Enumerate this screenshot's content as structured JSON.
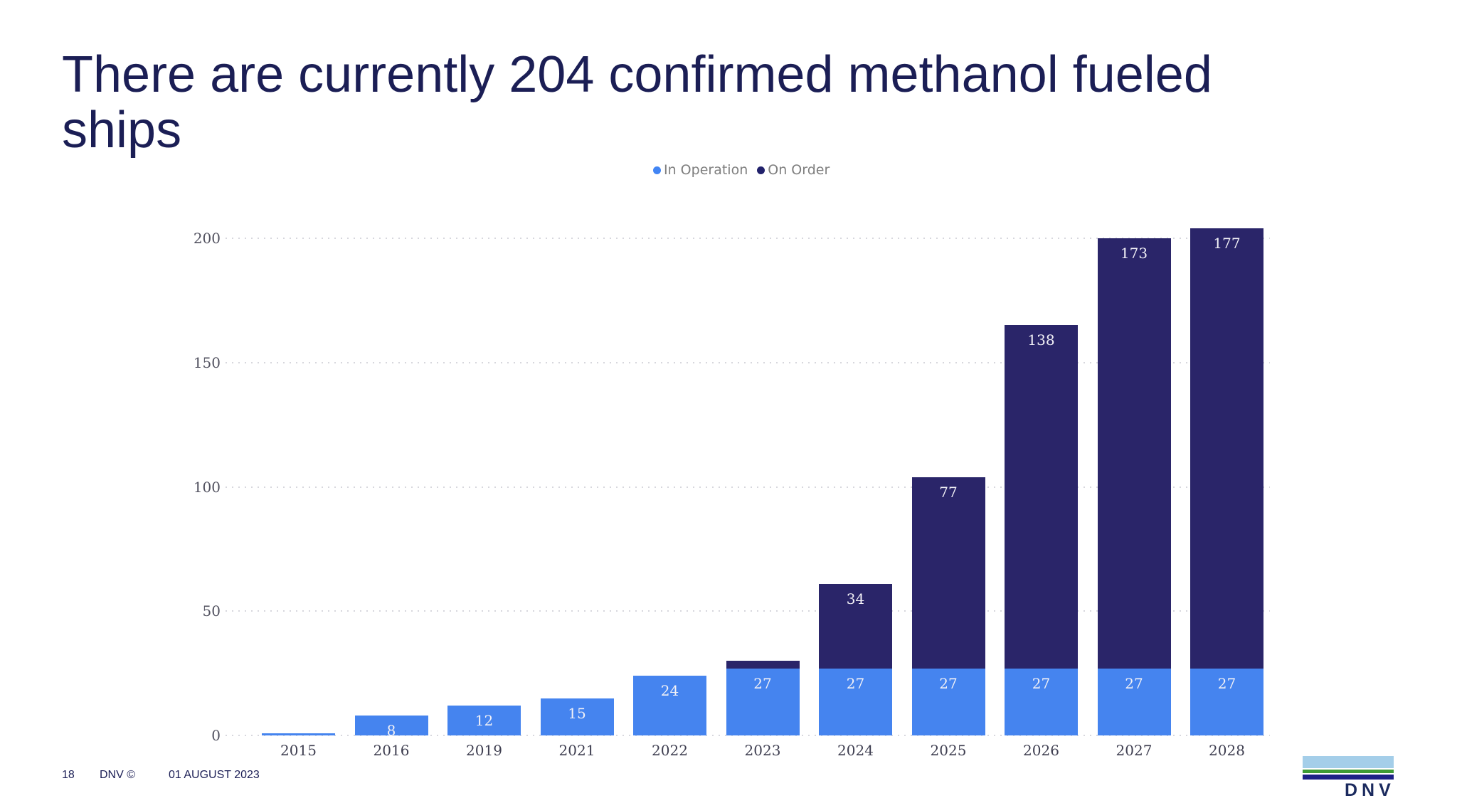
{
  "title": "There are currently 204 confirmed methanol fueled\nships",
  "legend": {
    "items": [
      {
        "label": "In Operation",
        "color": "#4285f4"
      },
      {
        "label": "On Order",
        "color": "#21216b"
      }
    ]
  },
  "chart_data": {
    "type": "bar",
    "stacked": true,
    "title": "",
    "xlabel": "",
    "ylabel": "",
    "categories": [
      "2015",
      "2016",
      "2019",
      "2021",
      "2022",
      "2023",
      "2024",
      "2025",
      "2026",
      "2027",
      "2028"
    ],
    "series": [
      {
        "name": "In Operation",
        "color": "#4584ef",
        "values": [
          1,
          8,
          12,
          15,
          24,
          27,
          27,
          27,
          27,
          27,
          27
        ],
        "labels": [
          "",
          "8",
          "12",
          "15",
          "24",
          "27",
          "27",
          "27",
          "27",
          "27",
          "27"
        ]
      },
      {
        "name": "On Order",
        "color": "#2a2569",
        "values": [
          0,
          0,
          0,
          0,
          0,
          3,
          34,
          77,
          138,
          173,
          177
        ],
        "labels": [
          "",
          "",
          "",
          "",
          "",
          "",
          "34",
          "77",
          "138",
          "173",
          "177"
        ]
      }
    ],
    "totals": [
      1,
      8,
      12,
      15,
      24,
      30,
      61,
      104,
      165,
      200,
      204
    ],
    "ylim": [
      0,
      210
    ],
    "yticks": [
      0,
      50,
      100,
      150,
      200
    ],
    "grid": "horizontal-dotted",
    "legend_position": "top-center"
  },
  "footer": {
    "page_number": "18",
    "copyright": "DNV ©",
    "date": "01 AUGUST 2023"
  },
  "logo": {
    "text": "DNV",
    "colors": {
      "light_blue": "#a4cee9",
      "green": "#3e9b36",
      "navy": "#1d2187"
    }
  }
}
